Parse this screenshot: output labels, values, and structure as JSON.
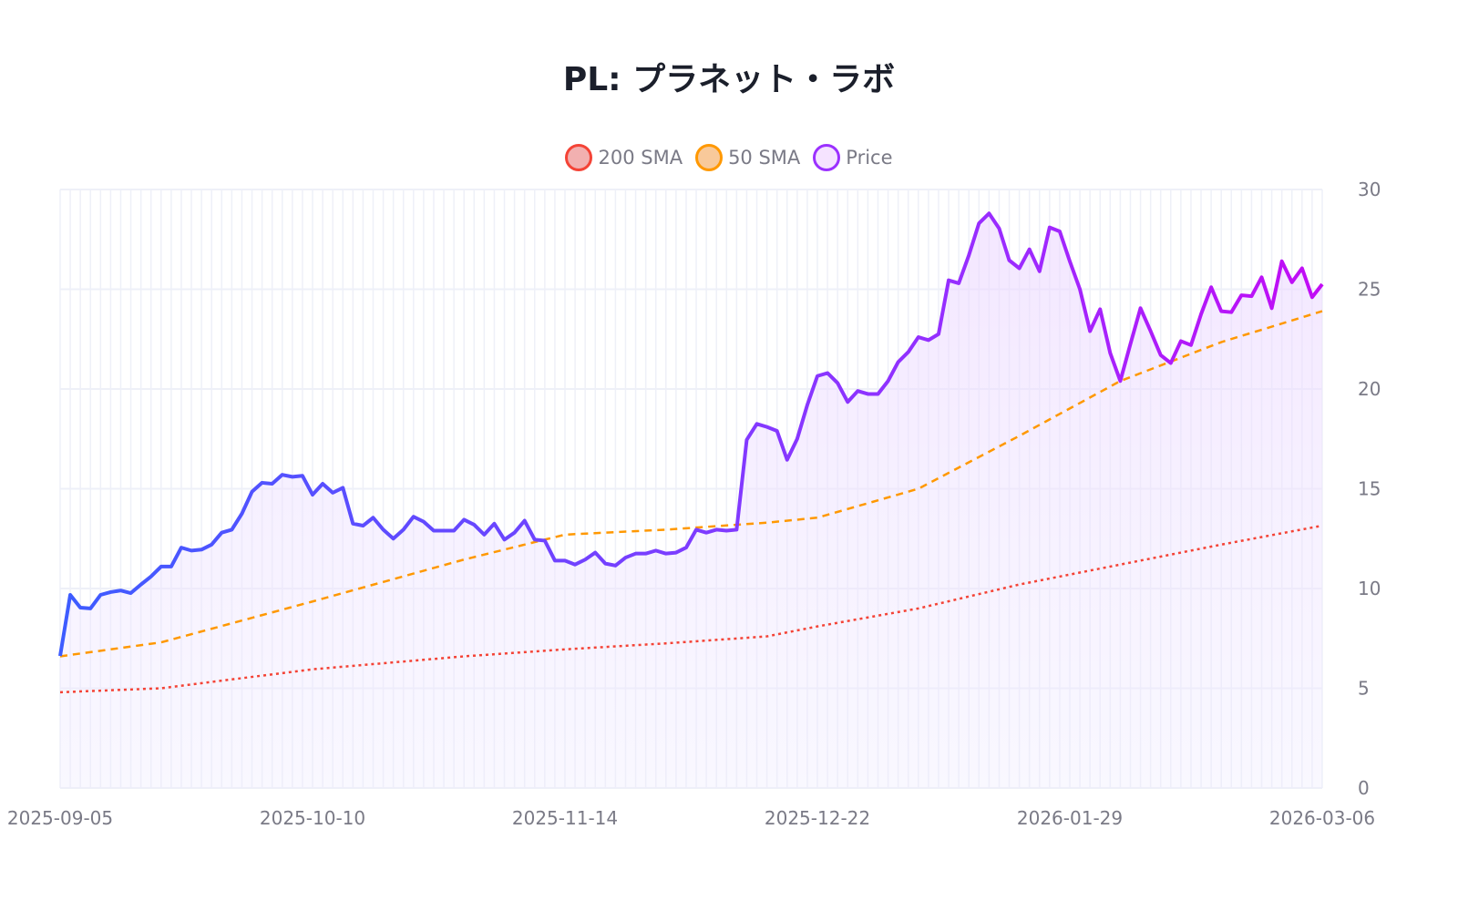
{
  "chart_data": {
    "type": "line",
    "title": "PL: プラネット・ラボ",
    "xlabel": "",
    "ylabel": "",
    "ylim": [
      0,
      30
    ],
    "yticks": [
      "0",
      "5",
      "10",
      "15",
      "20",
      "25",
      "30"
    ],
    "xticks": [
      "2025-09-05",
      "2025-10-10",
      "2025-11-14",
      "2025-12-22",
      "2026-01-29",
      "2026-03-06"
    ],
    "grid": true,
    "legend_placement": "top-center",
    "dates": [
      "2025-09-05",
      "2025-09-08",
      "2025-09-09",
      "2025-09-10",
      "2025-09-11",
      "2025-09-12",
      "2025-09-15",
      "2025-09-16",
      "2025-09-17",
      "2025-09-18",
      "2025-09-19",
      "2025-09-22",
      "2025-09-23",
      "2025-09-24",
      "2025-09-25",
      "2025-09-26",
      "2025-09-29",
      "2025-09-30",
      "2025-10-01",
      "2025-10-02",
      "2025-10-03",
      "2025-10-06",
      "2025-10-07",
      "2025-10-08",
      "2025-10-09",
      "2025-10-10",
      "2025-10-13",
      "2025-10-14",
      "2025-10-15",
      "2025-10-16",
      "2025-10-17",
      "2025-10-20",
      "2025-10-21",
      "2025-10-22",
      "2025-10-23",
      "2025-10-24",
      "2025-10-27",
      "2025-10-28",
      "2025-10-29",
      "2025-10-30",
      "2025-10-31",
      "2025-11-03",
      "2025-11-04",
      "2025-11-05",
      "2025-11-06",
      "2025-11-07",
      "2025-11-10",
      "2025-11-11",
      "2025-11-12",
      "2025-11-13",
      "2025-11-14",
      "2025-11-17",
      "2025-11-18",
      "2025-11-19",
      "2025-11-20",
      "2025-11-21",
      "2025-11-24",
      "2025-11-25",
      "2025-11-26",
      "2025-11-28",
      "2025-12-01",
      "2025-12-02",
      "2025-12-03",
      "2025-12-04",
      "2025-12-05",
      "2025-12-08",
      "2025-12-09",
      "2025-12-10",
      "2025-12-11",
      "2025-12-12",
      "2025-12-15",
      "2025-12-16",
      "2025-12-17",
      "2025-12-18",
      "2025-12-19",
      "2025-12-22",
      "2025-12-23",
      "2025-12-24",
      "2025-12-26",
      "2025-12-29",
      "2025-12-30",
      "2025-12-31",
      "2026-01-02",
      "2026-01-05",
      "2026-01-06",
      "2026-01-07",
      "2026-01-08",
      "2026-01-09",
      "2026-01-12",
      "2026-01-13",
      "2026-01-14",
      "2026-01-15",
      "2026-01-16",
      "2026-01-20",
      "2026-01-21",
      "2026-01-22",
      "2026-01-23",
      "2026-01-26",
      "2026-01-27",
      "2026-01-28",
      "2026-01-29",
      "2026-01-30",
      "2026-02-02",
      "2026-02-03",
      "2026-02-04",
      "2026-02-05",
      "2026-02-06",
      "2026-02-09",
      "2026-02-10",
      "2026-02-11",
      "2026-02-12",
      "2026-02-13",
      "2026-02-17",
      "2026-02-18",
      "2026-02-19",
      "2026-02-20",
      "2026-02-23",
      "2026-02-24",
      "2026-02-25",
      "2026-02-26",
      "2026-02-27",
      "2026-03-02",
      "2026-03-03",
      "2026-03-04",
      "2026-03-05",
      "2026-03-06"
    ],
    "series": [
      {
        "name": "200 SMA",
        "color": "#f44336",
        "fill": "#f2b0b0",
        "style": "dotted",
        "points": [
          [
            "2025-09-05",
            4.8
          ],
          [
            "2025-09-19",
            5.0
          ],
          [
            "2025-10-10",
            5.95
          ],
          [
            "2025-10-31",
            6.6
          ],
          [
            "2025-11-14",
            6.95
          ],
          [
            "2025-12-01",
            7.25
          ],
          [
            "2025-12-15",
            7.6
          ],
          [
            "2025-12-22",
            8.1
          ],
          [
            "2026-01-07",
            9.0
          ],
          [
            "2026-01-22",
            10.2
          ],
          [
            "2026-02-05",
            11.2
          ],
          [
            "2026-02-20",
            12.2
          ],
          [
            "2026-03-06",
            13.15
          ]
        ]
      },
      {
        "name": "50 SMA",
        "color": "#ff9800",
        "fill": "#f8c99a",
        "style": "dashed",
        "points": [
          [
            "2025-09-05",
            6.6
          ],
          [
            "2025-09-19",
            7.3
          ],
          [
            "2025-10-10",
            9.35
          ],
          [
            "2025-10-31",
            11.45
          ],
          [
            "2025-11-14",
            12.7
          ],
          [
            "2025-12-01",
            12.95
          ],
          [
            "2025-12-15",
            13.3
          ],
          [
            "2025-12-22",
            13.55
          ],
          [
            "2026-01-07",
            15.0
          ],
          [
            "2026-01-22",
            17.65
          ],
          [
            "2026-02-05",
            20.4
          ],
          [
            "2026-02-20",
            22.35
          ],
          [
            "2026-03-06",
            23.9
          ]
        ]
      },
      {
        "name": "Price",
        "color": "#9b30ff",
        "fill": "#f5e3ff",
        "style": "solid",
        "values": [
          6.62,
          9.68,
          9.04,
          9.0,
          9.68,
          9.82,
          9.9,
          9.77,
          10.2,
          10.6,
          11.1,
          11.1,
          12.05,
          11.9,
          11.95,
          12.2,
          12.8,
          12.95,
          13.75,
          14.85,
          15.3,
          15.25,
          15.7,
          15.6,
          15.65,
          14.7,
          15.25,
          14.8,
          15.05,
          13.25,
          13.15,
          13.55,
          12.95,
          12.5,
          12.95,
          13.6,
          13.35,
          12.9,
          12.9,
          12.9,
          13.45,
          13.2,
          12.7,
          13.25,
          12.45,
          12.8,
          13.4,
          12.45,
          12.4,
          11.4,
          11.4,
          11.2,
          11.45,
          11.8,
          11.25,
          11.15,
          11.55,
          11.75,
          11.75,
          11.9,
          11.75,
          11.8,
          12.05,
          12.95,
          12.8,
          12.95,
          12.9,
          12.95,
          17.45,
          18.25,
          18.1,
          17.9,
          16.45,
          17.5,
          19.2,
          20.65,
          20.8,
          20.3,
          19.35,
          19.9,
          19.75,
          19.75,
          20.4,
          21.35,
          21.85,
          22.6,
          22.45,
          22.75,
          25.45,
          25.3,
          26.7,
          28.3,
          28.8,
          28.05,
          26.45,
          26.05,
          27.0,
          25.9,
          28.1,
          27.9,
          26.4,
          25.0,
          22.9,
          24.0,
          21.8,
          20.4,
          22.25,
          24.05,
          22.9,
          21.7,
          21.3,
          22.4,
          22.2,
          23.75,
          25.1,
          23.9,
          23.85,
          24.7,
          24.65,
          25.6,
          24.05,
          26.4,
          25.35,
          26.05,
          24.6,
          25.25
        ]
      }
    ],
    "line_gradient": [
      "#3d5cff",
      "#7d3cff",
      "#9b2bff",
      "#c20cf5"
    ]
  }
}
